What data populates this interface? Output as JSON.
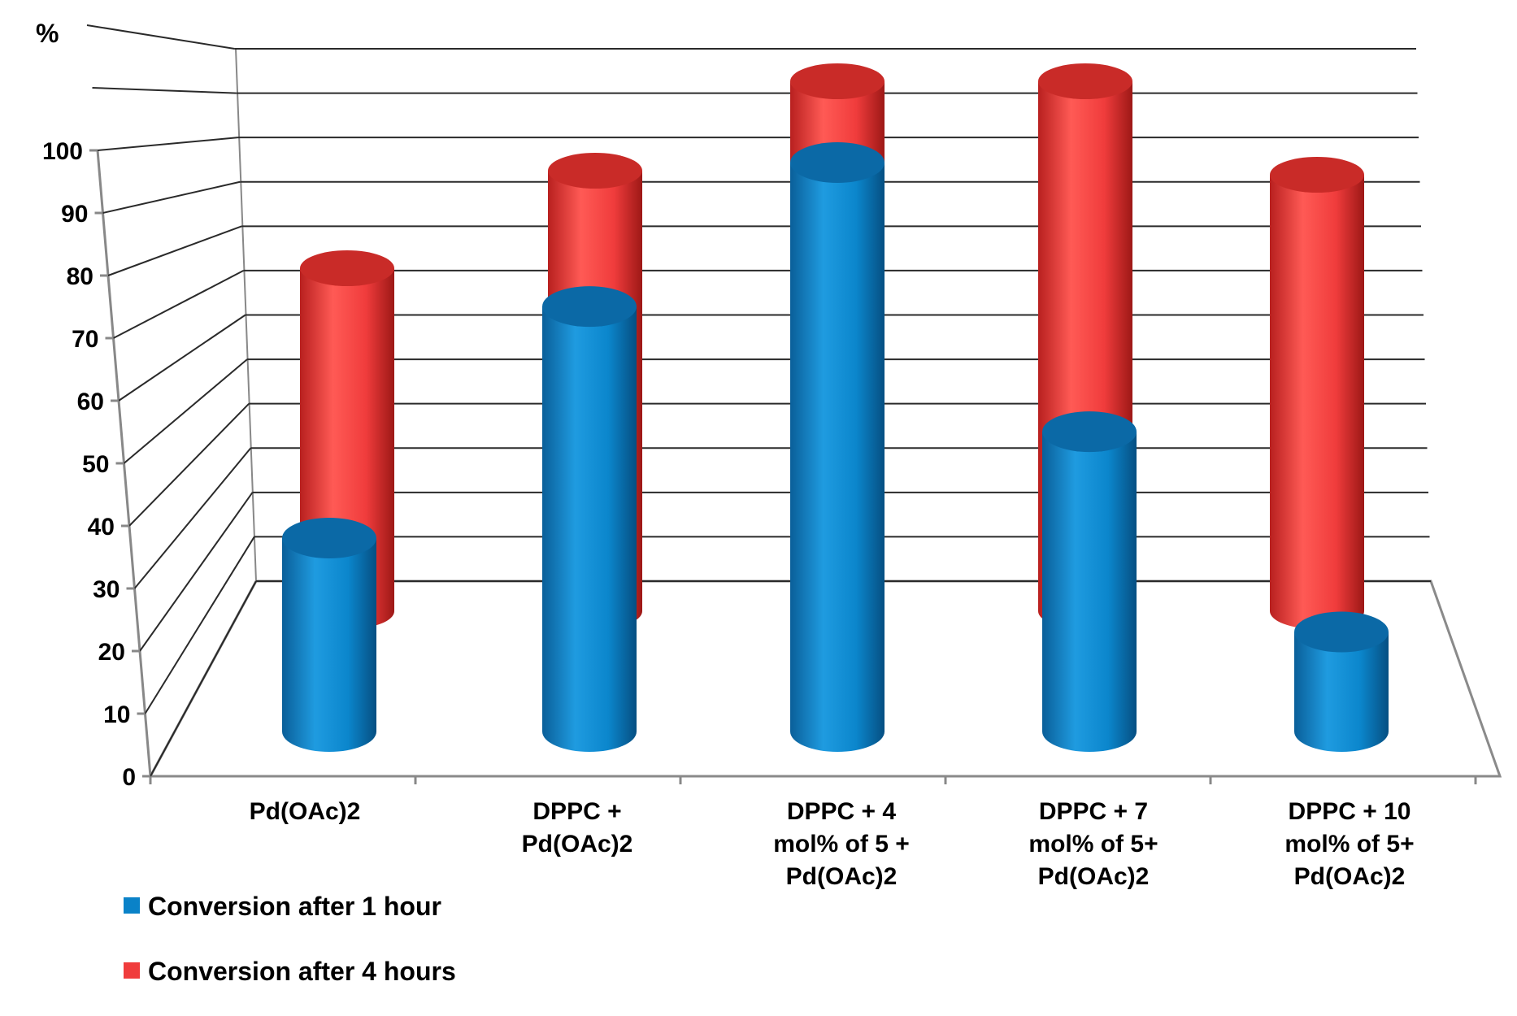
{
  "chart_data": {
    "type": "bar",
    "style": "3d-cylinder",
    "title": "",
    "ylabel": "%",
    "xlabel": "",
    "ylim": [
      0,
      100
    ],
    "yticks": [
      "0",
      "10",
      "20",
      "30",
      "40",
      "50",
      "60",
      "70",
      "80",
      "90",
      "100"
    ],
    "grid": true,
    "categories": [
      [
        "Pd(OAc)2"
      ],
      [
        "DPPC +",
        "Pd(OAc)2"
      ],
      [
        "DPPC + 4",
        "mol% of 5 +",
        "Pd(OAc)2"
      ],
      [
        "DPPC + 7",
        "mol% of 5+",
        "Pd(OAc)2"
      ],
      [
        "DPPC + 10",
        "mol% of 5+",
        "Pd(OAc)2"
      ]
    ],
    "series": [
      {
        "name": "Conversion after 1 hour",
        "color": "#0a82c8",
        "values": [
          40,
          77,
          100,
          57,
          25
        ]
      },
      {
        "name": "Conversion after 4 hours",
        "color": "#f03c3c",
        "values": [
          60,
          81,
          100,
          100,
          81
        ]
      }
    ],
    "legend_position": "bottom-left"
  }
}
